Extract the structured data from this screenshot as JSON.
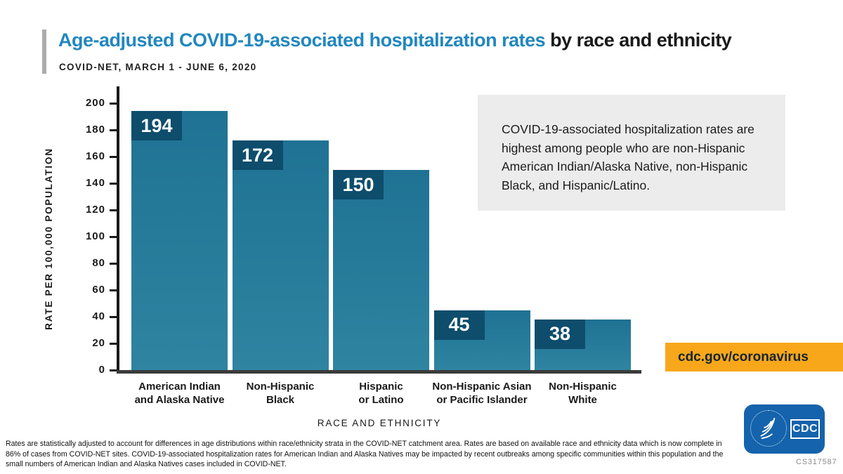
{
  "header": {
    "title_blue": "Age-adjusted COVID-19-associated hospitalization rates",
    "title_black": " by race and ethnicity",
    "subtitle": "COVID-NET, MARCH 1 - JUNE 6, 2020"
  },
  "chart_data": {
    "type": "bar",
    "title": "Age-adjusted COVID-19-associated hospitalization rates by race and ethnicity",
    "subtitle": "COVID-NET, MARCH 1 - JUNE 6, 2020",
    "categories": [
      "American Indian and Alaska Native",
      "Non-Hispanic Black",
      "Hispanic or Latino",
      "Non-Hispanic Asian or Pacific Islander",
      "Non-Hispanic White"
    ],
    "category_lines": [
      [
        "American Indian",
        "and Alaska Native"
      ],
      [
        "Non-Hispanic",
        "Black"
      ],
      [
        "Hispanic",
        "or Latino"
      ],
      [
        "Non-Hispanic Asian",
        "or Pacific Islander"
      ],
      [
        "Non-Hispanic",
        "White"
      ]
    ],
    "values": [
      194,
      172,
      150,
      45,
      38
    ],
    "xlabel": "RACE AND ETHNICITY",
    "ylabel": "RATE PER 100,000 POPULATION",
    "ylim": [
      0,
      200
    ],
    "yticks": [
      0,
      20,
      40,
      60,
      80,
      100,
      120,
      140,
      160,
      180,
      200
    ],
    "grid": false,
    "legend": false,
    "data_labels_position": "inside-top-left"
  },
  "callout": {
    "text": "COVID-19-associated hospitalization rates are highest among people who are non-Hispanic American Indian/Alaska Native, non-Hispanic Black, and Hispanic/Latino."
  },
  "badge": {
    "label": "cdc.gov/coronavirus"
  },
  "logo": {
    "wordmark": "CDC",
    "cs_number": "CS317587"
  },
  "footnote": {
    "lines": [
      "Rates are statistically adjusted to account for differences in age distributions within race/ethnicity strata in the COVID-NET catchment area. Rates are based on available race and ethnicity data which is now complete in",
      "86% of cases from COVID-NET sites. COVID-19-associated hospitalization rates for American Indian and Alaska Natives may be impacted by recent outbreaks among specific communities within this population and the",
      "small numbers of American Indian and Alaska Natives cases included in COVID-NET."
    ]
  },
  "colors": {
    "title_blue": "#2287BE",
    "accent_bar_gray": "#ABABAB",
    "bar_top": "#1F7293",
    "bar_bottom": "#2E84A1",
    "value_box_navy": "#0E4D6C",
    "axis_black": "#1A1A1A",
    "baseline_gray": "#3B3B3B",
    "callout_bg": "#ECECEC",
    "badge_bg": "#F8A71B",
    "badge_text": "#15242E",
    "logo_blue": "#1463AC",
    "cs_gray": "#8A8A8A"
  }
}
